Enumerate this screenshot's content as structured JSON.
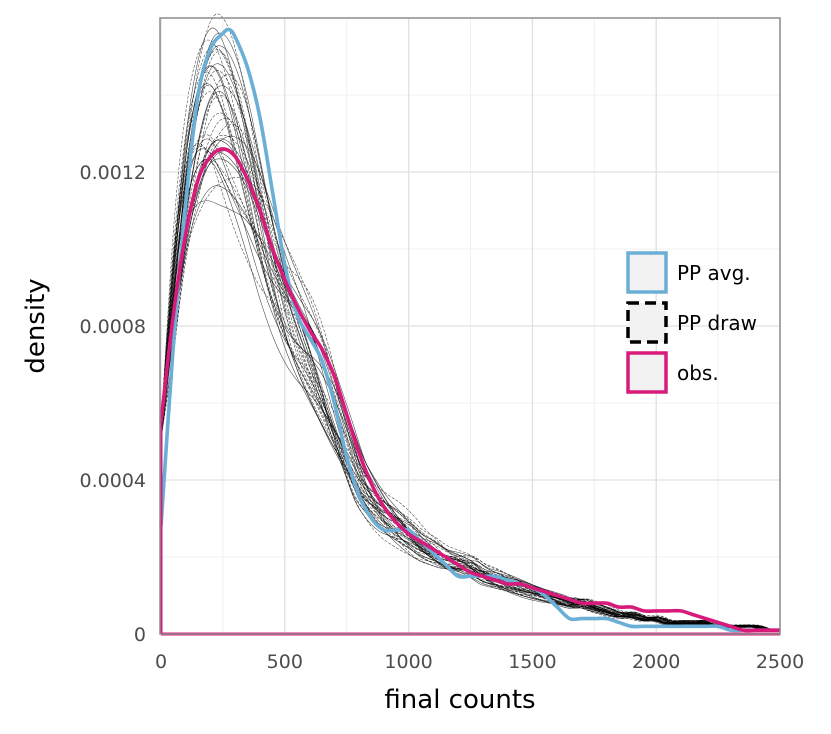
{
  "chart_data": {
    "type": "line",
    "title": "",
    "xlabel": "final counts",
    "ylabel": "density",
    "xlim": [
      0,
      2500
    ],
    "ylim": [
      0,
      0.0016
    ],
    "x_ticks": [
      0,
      500,
      1000,
      1500,
      2000,
      2500
    ],
    "x_tick_labels": [
      "0",
      "500",
      "1000",
      "1500",
      "2000",
      "2500"
    ],
    "y_ticks": [
      0,
      0.0004,
      0.0008,
      0.0012
    ],
    "y_tick_labels": [
      "0",
      "0.0004",
      "0.0008",
      "0.0012"
    ],
    "grid": true,
    "legend_position": "right",
    "legend": [
      {
        "key": "pp_avg",
        "label": "PP avg.",
        "color": "#6baed6",
        "style": "solid"
      },
      {
        "key": "pp_draw",
        "label": "PP draw",
        "color": "#000000",
        "style": "dashed"
      },
      {
        "key": "obs",
        "label": "obs.",
        "color": "#d81b7a",
        "style": "solid"
      }
    ],
    "series": [
      {
        "key": "pp_avg",
        "color": "#6baed6",
        "x": [
          0,
          50,
          100,
          150,
          200,
          250,
          275,
          300,
          350,
          400,
          450,
          500,
          550,
          600,
          650,
          700,
          750,
          800,
          850,
          900,
          950,
          1000,
          1050,
          1100,
          1150,
          1200,
          1250,
          1300,
          1350,
          1400,
          1450,
          1500,
          1550,
          1600,
          1650,
          1700,
          1750,
          1800,
          1850,
          1900,
          1950,
          2000,
          2050,
          2100,
          2150,
          2200,
          2250,
          2300,
          2350,
          2400,
          2450,
          2500
        ],
        "y": [
          0.00028,
          0.00075,
          0.00112,
          0.0014,
          0.00152,
          0.00156,
          0.00157,
          0.00155,
          0.00147,
          0.00134,
          0.00115,
          0.00096,
          0.00083,
          0.00077,
          0.00071,
          0.0006,
          0.00046,
          0.00036,
          0.0003,
          0.00027,
          0.00027,
          0.00027,
          0.00024,
          0.00021,
          0.00018,
          0.00015,
          0.00015,
          0.00015,
          0.00015,
          0.00014,
          0.00013,
          0.00012,
          0.0001,
          7e-05,
          4e-05,
          4e-05,
          4e-05,
          4e-05,
          3e-05,
          2e-05,
          2e-05,
          2e-05,
          2e-05,
          2e-05,
          2e-05,
          2e-05,
          2e-05,
          1e-05,
          1e-05,
          1e-05,
          1e-05,
          1e-05
        ]
      },
      {
        "key": "obs",
        "color": "#d81b7a",
        "x": [
          0,
          50,
          100,
          150,
          200,
          250,
          300,
          350,
          400,
          450,
          500,
          550,
          600,
          650,
          700,
          750,
          800,
          850,
          900,
          950,
          1000,
          1050,
          1100,
          1150,
          1200,
          1250,
          1300,
          1350,
          1400,
          1450,
          1500,
          1550,
          1600,
          1650,
          1700,
          1750,
          1800,
          1850,
          1900,
          1950,
          2000,
          2050,
          2100,
          2150,
          2200,
          2250,
          2300,
          2350,
          2400,
          2450,
          2500
        ],
        "y": [
          0.00055,
          0.00083,
          0.00104,
          0.00118,
          0.00124,
          0.00126,
          0.00124,
          0.00118,
          0.0011,
          0.001,
          0.00092,
          0.00085,
          0.00079,
          0.00074,
          0.00067,
          0.00057,
          0.00047,
          0.00039,
          0.00033,
          0.00029,
          0.00026,
          0.00024,
          0.00022,
          0.0002,
          0.00018,
          0.00016,
          0.00015,
          0.00014,
          0.00013,
          0.00013,
          0.00012,
          0.00011,
          0.0001,
          9e-05,
          8e-05,
          8e-05,
          8e-05,
          7e-05,
          7e-05,
          6e-05,
          6e-05,
          6e-05,
          6e-05,
          5e-05,
          4e-05,
          3e-05,
          2e-05,
          1e-05,
          1e-05,
          1e-05,
          1e-05
        ]
      }
    ],
    "pp_draws": {
      "count": 40,
      "color": "#000000",
      "base_x": [
        0,
        50,
        100,
        150,
        200,
        250,
        300,
        350,
        400,
        450,
        500,
        550,
        600,
        650,
        700,
        750,
        800,
        850,
        900,
        950,
        1000,
        1050,
        1100,
        1150,
        1200,
        1250,
        1300,
        1350,
        1400,
        1450,
        1500,
        1550,
        1600,
        1650,
        1700,
        1750,
        1800,
        1850,
        1900,
        1950,
        2000,
        2050,
        2100,
        2150,
        2200,
        2250,
        2300,
        2350,
        2400,
        2450,
        2500
      ],
      "base_y": [
        0.00052,
        0.00088,
        0.00115,
        0.0013,
        0.00136,
        0.00134,
        0.00127,
        0.00117,
        0.00105,
        0.00094,
        0.00085,
        0.00078,
        0.00072,
        0.00065,
        0.00057,
        0.00049,
        0.00041,
        0.00036,
        0.00032,
        0.00029,
        0.00026,
        0.00023,
        0.00021,
        0.00019,
        0.00018,
        0.00017,
        0.00015,
        0.00014,
        0.00013,
        0.00012,
        0.00011,
        0.0001,
        9e-05,
        8e-05,
        8e-05,
        7e-05,
        6e-05,
        5e-05,
        5e-05,
        4e-05,
        4e-05,
        3e-05,
        3e-05,
        3e-05,
        3e-05,
        2e-05,
        2e-05,
        2e-05,
        2e-05,
        1e-05,
        1e-05
      ]
    }
  }
}
